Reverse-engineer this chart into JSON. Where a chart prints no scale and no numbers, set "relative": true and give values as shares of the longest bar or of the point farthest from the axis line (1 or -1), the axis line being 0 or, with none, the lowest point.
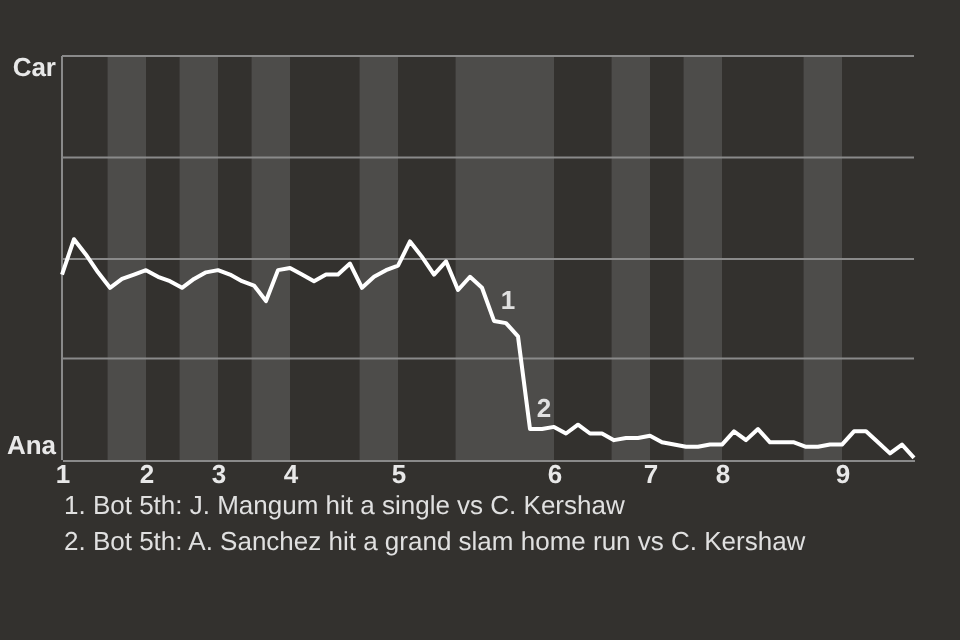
{
  "chart_data": {
    "type": "line",
    "relative": true,
    "categories": [
      "1",
      null,
      null,
      null,
      null,
      null,
      null,
      "2",
      null,
      null,
      null,
      null,
      null,
      "3",
      null,
      null,
      null,
      null,
      null,
      "4",
      null,
      null,
      null,
      null,
      null,
      null,
      null,
      null,
      "5",
      null,
      null,
      null,
      null,
      null,
      null,
      null,
      null,
      null,
      null,
      null,
      null,
      "6",
      null,
      null,
      null,
      null,
      null,
      null,
      null,
      "7",
      null,
      null,
      null,
      null,
      null,
      "8",
      null,
      null,
      null,
      null,
      null,
      null,
      null,
      null,
      null,
      "9",
      null,
      null,
      null,
      null,
      null,
      null
    ],
    "series": [
      {
        "color": "#ffffff",
        "values": [
          0.84,
          1,
          0.93,
          0.85,
          0.78,
          0.82,
          0.84,
          0.86,
          0.83,
          0.81,
          0.78,
          0.82,
          0.85,
          0.86,
          0.84,
          0.81,
          0.79,
          0.72,
          0.86,
          0.87,
          0.84,
          0.81,
          0.84,
          0.84,
          0.89,
          0.78,
          0.83,
          0.86,
          0.88,
          0.99,
          0.92,
          0.84,
          0.9,
          0.77,
          0.83,
          0.78,
          0.63,
          0.62,
          0.56,
          0.14,
          0.14,
          0.15,
          0.12,
          0.16,
          0.12,
          0.12,
          0.09,
          0.1,
          0.1,
          0.11,
          0.08,
          0.07,
          0.06,
          0.06,
          0.07,
          0.07,
          0.13,
          0.09,
          0.14,
          0.08,
          0.08,
          0.08,
          0.06,
          0.06,
          0.07,
          0.07,
          0.13,
          0.13,
          0.08,
          0.03,
          0.07,
          0.01
        ]
      }
    ],
    "marker": "none",
    "line_style": "solid",
    "ref_lines": [
      {
        "axis": "y",
        "value": 0.46,
        "color": "#8a8a8a"
      },
      {
        "axis": "y",
        "value": 0.91,
        "color": "#8a8a8a"
      },
      {
        "axis": "y",
        "value": 1.37,
        "color": "#8a8a8a"
      },
      {
        "axis": "y",
        "value": 1.83,
        "color": "#8a8a8a"
      }
    ],
    "annotations": [
      "Car",
      "Ana",
      {
        "text": "1",
        "y": 0.63
      },
      {
        "text": "2",
        "y": 0.14
      },
      "1. Bot 5th: J. Mangum hit a single vs C. Kershaw",
      "2. Bot 5th: A. Sanchez hit a grand slam home run vs C. Kershaw"
    ]
  }
}
